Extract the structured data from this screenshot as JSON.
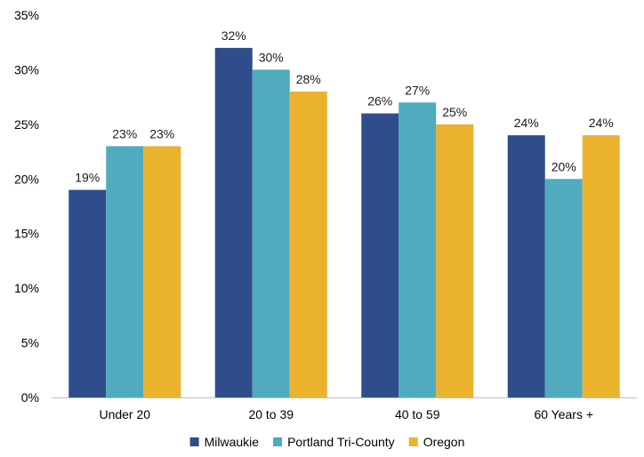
{
  "chart_data": {
    "type": "bar",
    "title": "",
    "xlabel": "",
    "ylabel": "",
    "categories": [
      "Under 20",
      "20 to 39",
      "40 to 59",
      "60 Years +"
    ],
    "series": [
      {
        "name": "Milwaukie",
        "color": "#2e4d8a",
        "values": [
          19,
          32,
          26,
          24
        ],
        "labels": [
          "19%",
          "32%",
          "26%",
          "24%"
        ]
      },
      {
        "name": "Portland Tri-County",
        "color": "#4fabbd",
        "values": [
          23,
          30,
          27,
          20
        ],
        "labels": [
          "23%",
          "30%",
          "27%",
          "20%"
        ]
      },
      {
        "name": "Oregon",
        "color": "#ebb22e",
        "values": [
          23,
          28,
          25,
          24
        ],
        "labels": [
          "23%",
          "28%",
          "25%",
          "24%"
        ]
      }
    ],
    "ylim": [
      0,
      35
    ],
    "yticks": [
      0,
      5,
      10,
      15,
      20,
      25,
      30,
      35
    ],
    "ytick_labels": [
      "0%",
      "5%",
      "10%",
      "15%",
      "20%",
      "25%",
      "30%",
      "35%"
    ],
    "grid": false,
    "legend_position": "bottom"
  }
}
